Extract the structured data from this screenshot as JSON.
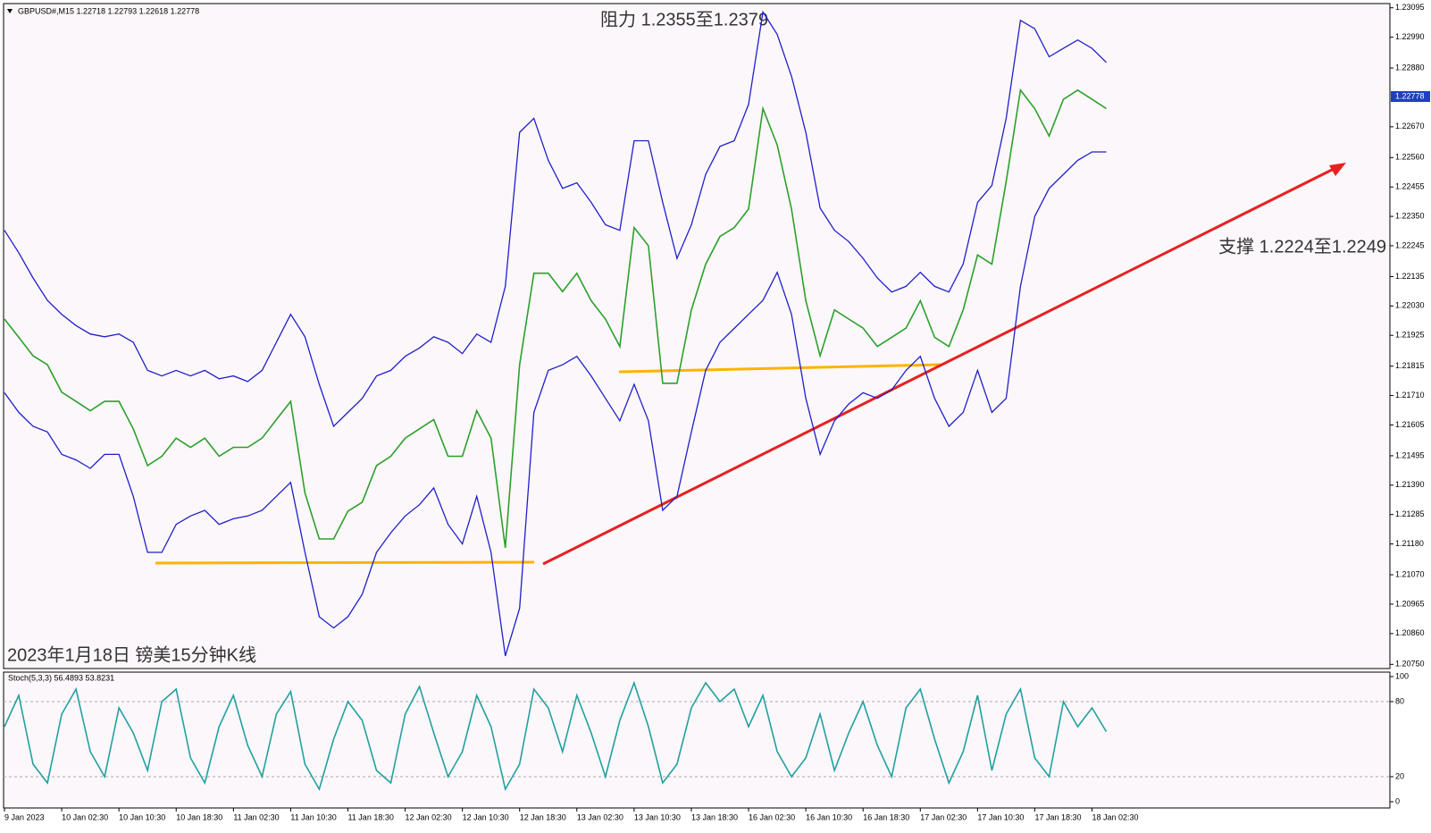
{
  "chart_data": [
    {
      "type": "line",
      "header": "GBPUSD#,M15  1.22718 1.22793 1.22618 1.22778",
      "annotations": [
        "阻力 1.2355至1.2379",
        "支撑 1.2224至1.2249",
        "2023年1月18日 镑美15分钟K线"
      ],
      "categories": [
        "9 Jan 2023",
        null,
        null,
        null,
        "10 Jan 02:30",
        null,
        null,
        null,
        "10 Jan 10:30",
        null,
        null,
        null,
        "10 Jan 18:30",
        null,
        null,
        null,
        "11 Jan 02:30",
        null,
        null,
        null,
        "11 Jan 10:30",
        null,
        null,
        null,
        "11 Jan 18:30",
        null,
        null,
        null,
        "12 Jan 02:30",
        null,
        null,
        null,
        "12 Jan 10:30",
        null,
        null,
        null,
        "12 Jan 18:30",
        null,
        null,
        null,
        "13 Jan 02:30",
        null,
        null,
        null,
        "13 Jan 10:30",
        null,
        null,
        null,
        "13 Jan 18:30",
        null,
        null,
        null,
        "16 Jan 02:30",
        null,
        null,
        null,
        "16 Jan 10:30",
        null,
        null,
        null,
        "16 Jan 18:30",
        null,
        null,
        null,
        "17 Jan 02:30",
        null,
        null,
        null,
        "17 Jan 10:30",
        null,
        null,
        null,
        "17 Jan 18:30",
        null,
        null,
        null,
        "18 Jan 02:30",
        null
      ],
      "series": [
        {
          "color": "#2ca02c",
          "values": [
            1.21983,
            1.21918,
            1.21852,
            1.2182,
            1.21722,
            1.21689,
            1.21656,
            1.21689,
            1.21689,
            1.21591,
            1.2146,
            1.21493,
            1.21558,
            1.21525,
            1.21558,
            1.21493,
            1.21525,
            1.21525,
            1.21558,
            1.21624,
            1.21689,
            1.21362,
            1.21198,
            1.21198,
            1.21297,
            1.21329,
            1.2146,
            1.21493,
            1.21558,
            1.21591,
            1.21624,
            1.21493,
            1.21493,
            1.21656,
            1.21558,
            1.21166,
            1.2182,
            1.22147,
            1.22147,
            1.22081,
            1.22147,
            1.22049,
            1.21983,
            1.21885,
            1.2231,
            1.22245,
            1.21754,
            1.21754,
            1.22016,
            1.22179,
            1.22278,
            1.2231,
            1.22376,
            1.22735,
            1.22605,
            1.22376,
            1.22049,
            1.21852,
            1.22016,
            1.21983,
            1.21951,
            1.21885,
            1.21918,
            1.21951,
            1.22049,
            1.21918,
            1.21885,
            1.22016,
            1.22212,
            1.22179,
            1.22474,
            1.22801,
            1.22735,
            1.22637,
            1.22768,
            1.22801,
            1.22768,
            1.22735
          ]
        },
        {
          "color": "#1f1fcc",
          "values": [
            1.223,
            1.2222,
            1.2213,
            1.2205,
            1.22,
            1.2196,
            1.2193,
            1.2192,
            1.2193,
            1.219,
            1.218,
            1.2178,
            1.218,
            1.2178,
            1.218,
            1.2177,
            1.2178,
            1.2176,
            1.218,
            1.219,
            1.22,
            1.2192,
            1.2175,
            1.216,
            1.2165,
            1.217,
            1.2178,
            1.218,
            1.2185,
            1.2188,
            1.2192,
            1.219,
            1.2186,
            1.2193,
            1.219,
            1.221,
            1.2265,
            1.227,
            1.2255,
            1.2245,
            1.2247,
            1.224,
            1.2232,
            1.223,
            1.2262,
            1.2262,
            1.224,
            1.222,
            1.2232,
            1.225,
            1.226,
            1.2262,
            1.2275,
            1.2308,
            1.23,
            1.2285,
            1.2265,
            1.2238,
            1.223,
            1.2226,
            1.222,
            1.2213,
            1.2208,
            1.221,
            1.2215,
            1.221,
            1.2208,
            1.2218,
            1.224,
            1.2246,
            1.227,
            1.2305,
            1.2302,
            1.2292,
            1.2295,
            1.2298,
            1.2295,
            1.229
          ]
        },
        {
          "color": "#1f1fcc",
          "values": [
            1.2172,
            1.2165,
            1.216,
            1.2158,
            1.215,
            1.2148,
            1.2145,
            1.215,
            1.215,
            1.2135,
            1.2115,
            1.2115,
            1.2125,
            1.2128,
            1.213,
            1.2125,
            1.2127,
            1.2128,
            1.213,
            1.2135,
            1.214,
            1.2115,
            1.2092,
            1.2088,
            1.2092,
            1.21,
            1.2115,
            1.2122,
            1.2128,
            1.2132,
            1.2138,
            1.2125,
            1.2118,
            1.2135,
            1.2115,
            1.2078,
            1.2095,
            1.2165,
            1.218,
            1.2182,
            1.2185,
            1.2178,
            1.217,
            1.2162,
            1.2175,
            1.2162,
            1.213,
            1.2135,
            1.2158,
            1.218,
            1.219,
            1.2195,
            1.22,
            1.2205,
            1.2215,
            1.22,
            1.217,
            1.215,
            1.2162,
            1.2168,
            1.2172,
            1.217,
            1.2173,
            1.218,
            1.2185,
            1.217,
            1.216,
            1.2165,
            1.218,
            1.2165,
            1.217,
            1.221,
            1.2235,
            1.2245,
            1.225,
            1.2255,
            1.2258,
            1.2258
          ]
        }
      ],
      "ylim": [
        1.20735,
        1.2311
      ],
      "yticks": [
        1.23095,
        {
          "value": 1.2299,
          "label": "1.22990"
        },
        {
          "value": 1.2288,
          "label": "1.22880"
        },
        {
          "value": 1.2267,
          "label": "1.22670"
        },
        {
          "value": 1.2256,
          "label": "1.22560"
        },
        1.22455,
        {
          "value": 1.2235,
          "label": "1.22350"
        },
        1.22245,
        1.22135,
        {
          "value": 1.2203,
          "label": "1.22030"
        },
        1.21925,
        1.21815,
        {
          "value": 1.2171,
          "label": "1.21710"
        },
        1.21605,
        1.21495,
        {
          "value": 1.2139,
          "label": "1.21390"
        },
        1.21285,
        {
          "value": 1.2118,
          "label": "1.21180"
        },
        {
          "value": 1.2107,
          "label": "1.21070"
        },
        1.20965,
        {
          "value": 1.2086,
          "label": "1.20860"
        },
        {
          "value": 1.2075,
          "label": "1.20750"
        }
      ],
      "current_price": 1.22778
    },
    {
      "type": "line",
      "label": "Stoch(5,3,3) 56.4893 53.8231",
      "series": [
        {
          "color": "#20a0a0",
          "values": [
            60,
            85,
            30,
            15,
            70,
            90,
            40,
            20,
            75,
            55,
            25,
            80,
            90,
            35,
            15,
            60,
            85,
            45,
            20,
            70,
            88,
            30,
            10,
            50,
            80,
            65,
            25,
            15,
            70,
            92,
            55,
            20,
            40,
            85,
            60,
            10,
            30,
            90,
            75,
            40,
            85,
            55,
            20,
            65,
            95,
            60,
            15,
            30,
            75,
            95,
            80,
            90,
            60,
            85,
            40,
            20,
            35,
            70,
            25,
            55,
            80,
            45,
            20,
            75,
            90,
            50,
            15,
            40,
            85,
            25,
            70,
            90,
            35,
            20,
            80,
            60,
            75,
            56
          ]
        }
      ],
      "ylim": [
        0,
        100
      ],
      "yticks": [
        0,
        20,
        80,
        100
      ]
    }
  ]
}
